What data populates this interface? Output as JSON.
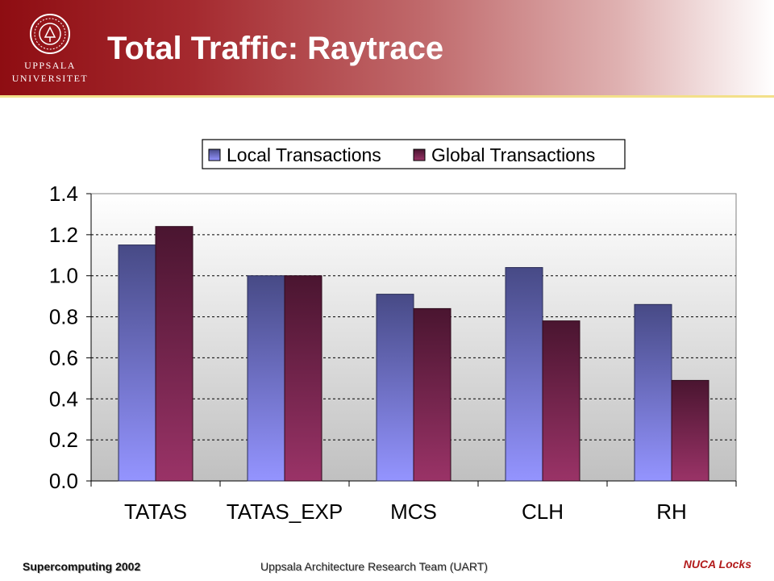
{
  "slide": {
    "title": "Total Traffic: Raytrace",
    "logo": {
      "line1": "UPPSALA",
      "line2": "UNIVERSITET"
    }
  },
  "footer": {
    "left": "Supercomputing 2002",
    "center": "Uppsala Architecture Research Team (UART)",
    "right": "NUCA Locks"
  },
  "colors": {
    "header_dark": "#8e0d12",
    "local_series": "#4a4f8c",
    "global_series": "#5a1a36",
    "plot_bg_top": "#ffffff",
    "plot_bg_bottom": "#c0c0c0"
  },
  "chart_data": {
    "type": "bar",
    "categories": [
      "TATAS",
      "TATAS_EXP",
      "MCS",
      "CLH",
      "RH"
    ],
    "series": [
      {
        "name": "Local Transactions",
        "values": [
          1.15,
          1.0,
          0.91,
          1.04,
          0.86
        ]
      },
      {
        "name": "Global Transactions",
        "values": [
          1.24,
          1.0,
          0.84,
          0.78,
          0.49
        ]
      }
    ],
    "yticks": [
      "0.0",
      "0.2",
      "0.4",
      "0.6",
      "0.8",
      "1.0",
      "1.2",
      "1.4"
    ],
    "ylim": [
      0,
      1.4
    ],
    "grid": true,
    "legend": "top"
  }
}
